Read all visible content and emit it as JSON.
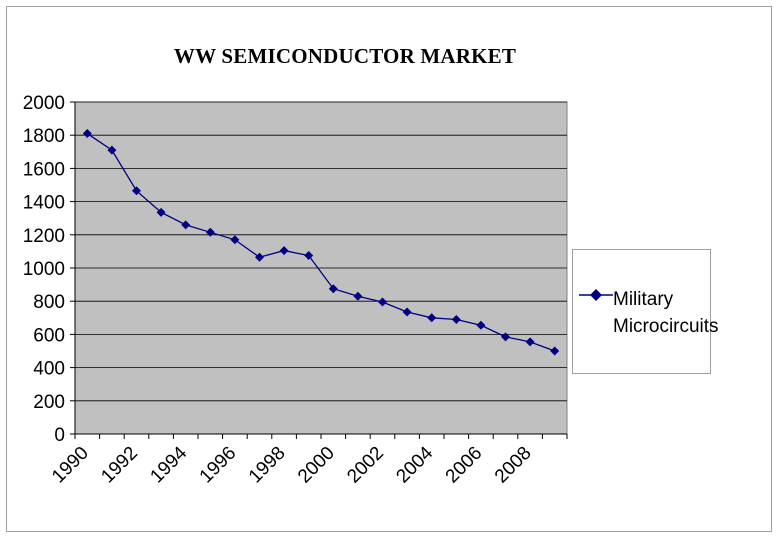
{
  "chart_data": {
    "type": "line",
    "title": "WW SEMICONDUCTOR MARKET",
    "xlabel": "",
    "ylabel": "",
    "x": [
      1990,
      1991,
      1992,
      1993,
      1994,
      1995,
      1996,
      1997,
      1998,
      1999,
      2000,
      2001,
      2002,
      2003,
      2004,
      2005,
      2006,
      2007,
      2008,
      2009
    ],
    "x_tick_labels": [
      "1990",
      "1992",
      "1994",
      "1996",
      "1998",
      "2000",
      "2002",
      "2004",
      "2006",
      "2008"
    ],
    "y_tick_labels": [
      "0",
      "200",
      "400",
      "600",
      "800",
      "1000",
      "1200",
      "1400",
      "1600",
      "1800",
      "2000"
    ],
    "ylim": [
      0,
      2000
    ],
    "grid": true,
    "legend_position": "right",
    "plot_background": "#c0c0c0",
    "series": [
      {
        "name": "Military Microcircuits",
        "color": "#000080",
        "marker": "diamond",
        "values": [
          1810,
          1710,
          1465,
          1335,
          1260,
          1215,
          1170,
          1065,
          1105,
          1075,
          875,
          830,
          795,
          735,
          700,
          690,
          655,
          585,
          555,
          500
        ]
      }
    ]
  }
}
